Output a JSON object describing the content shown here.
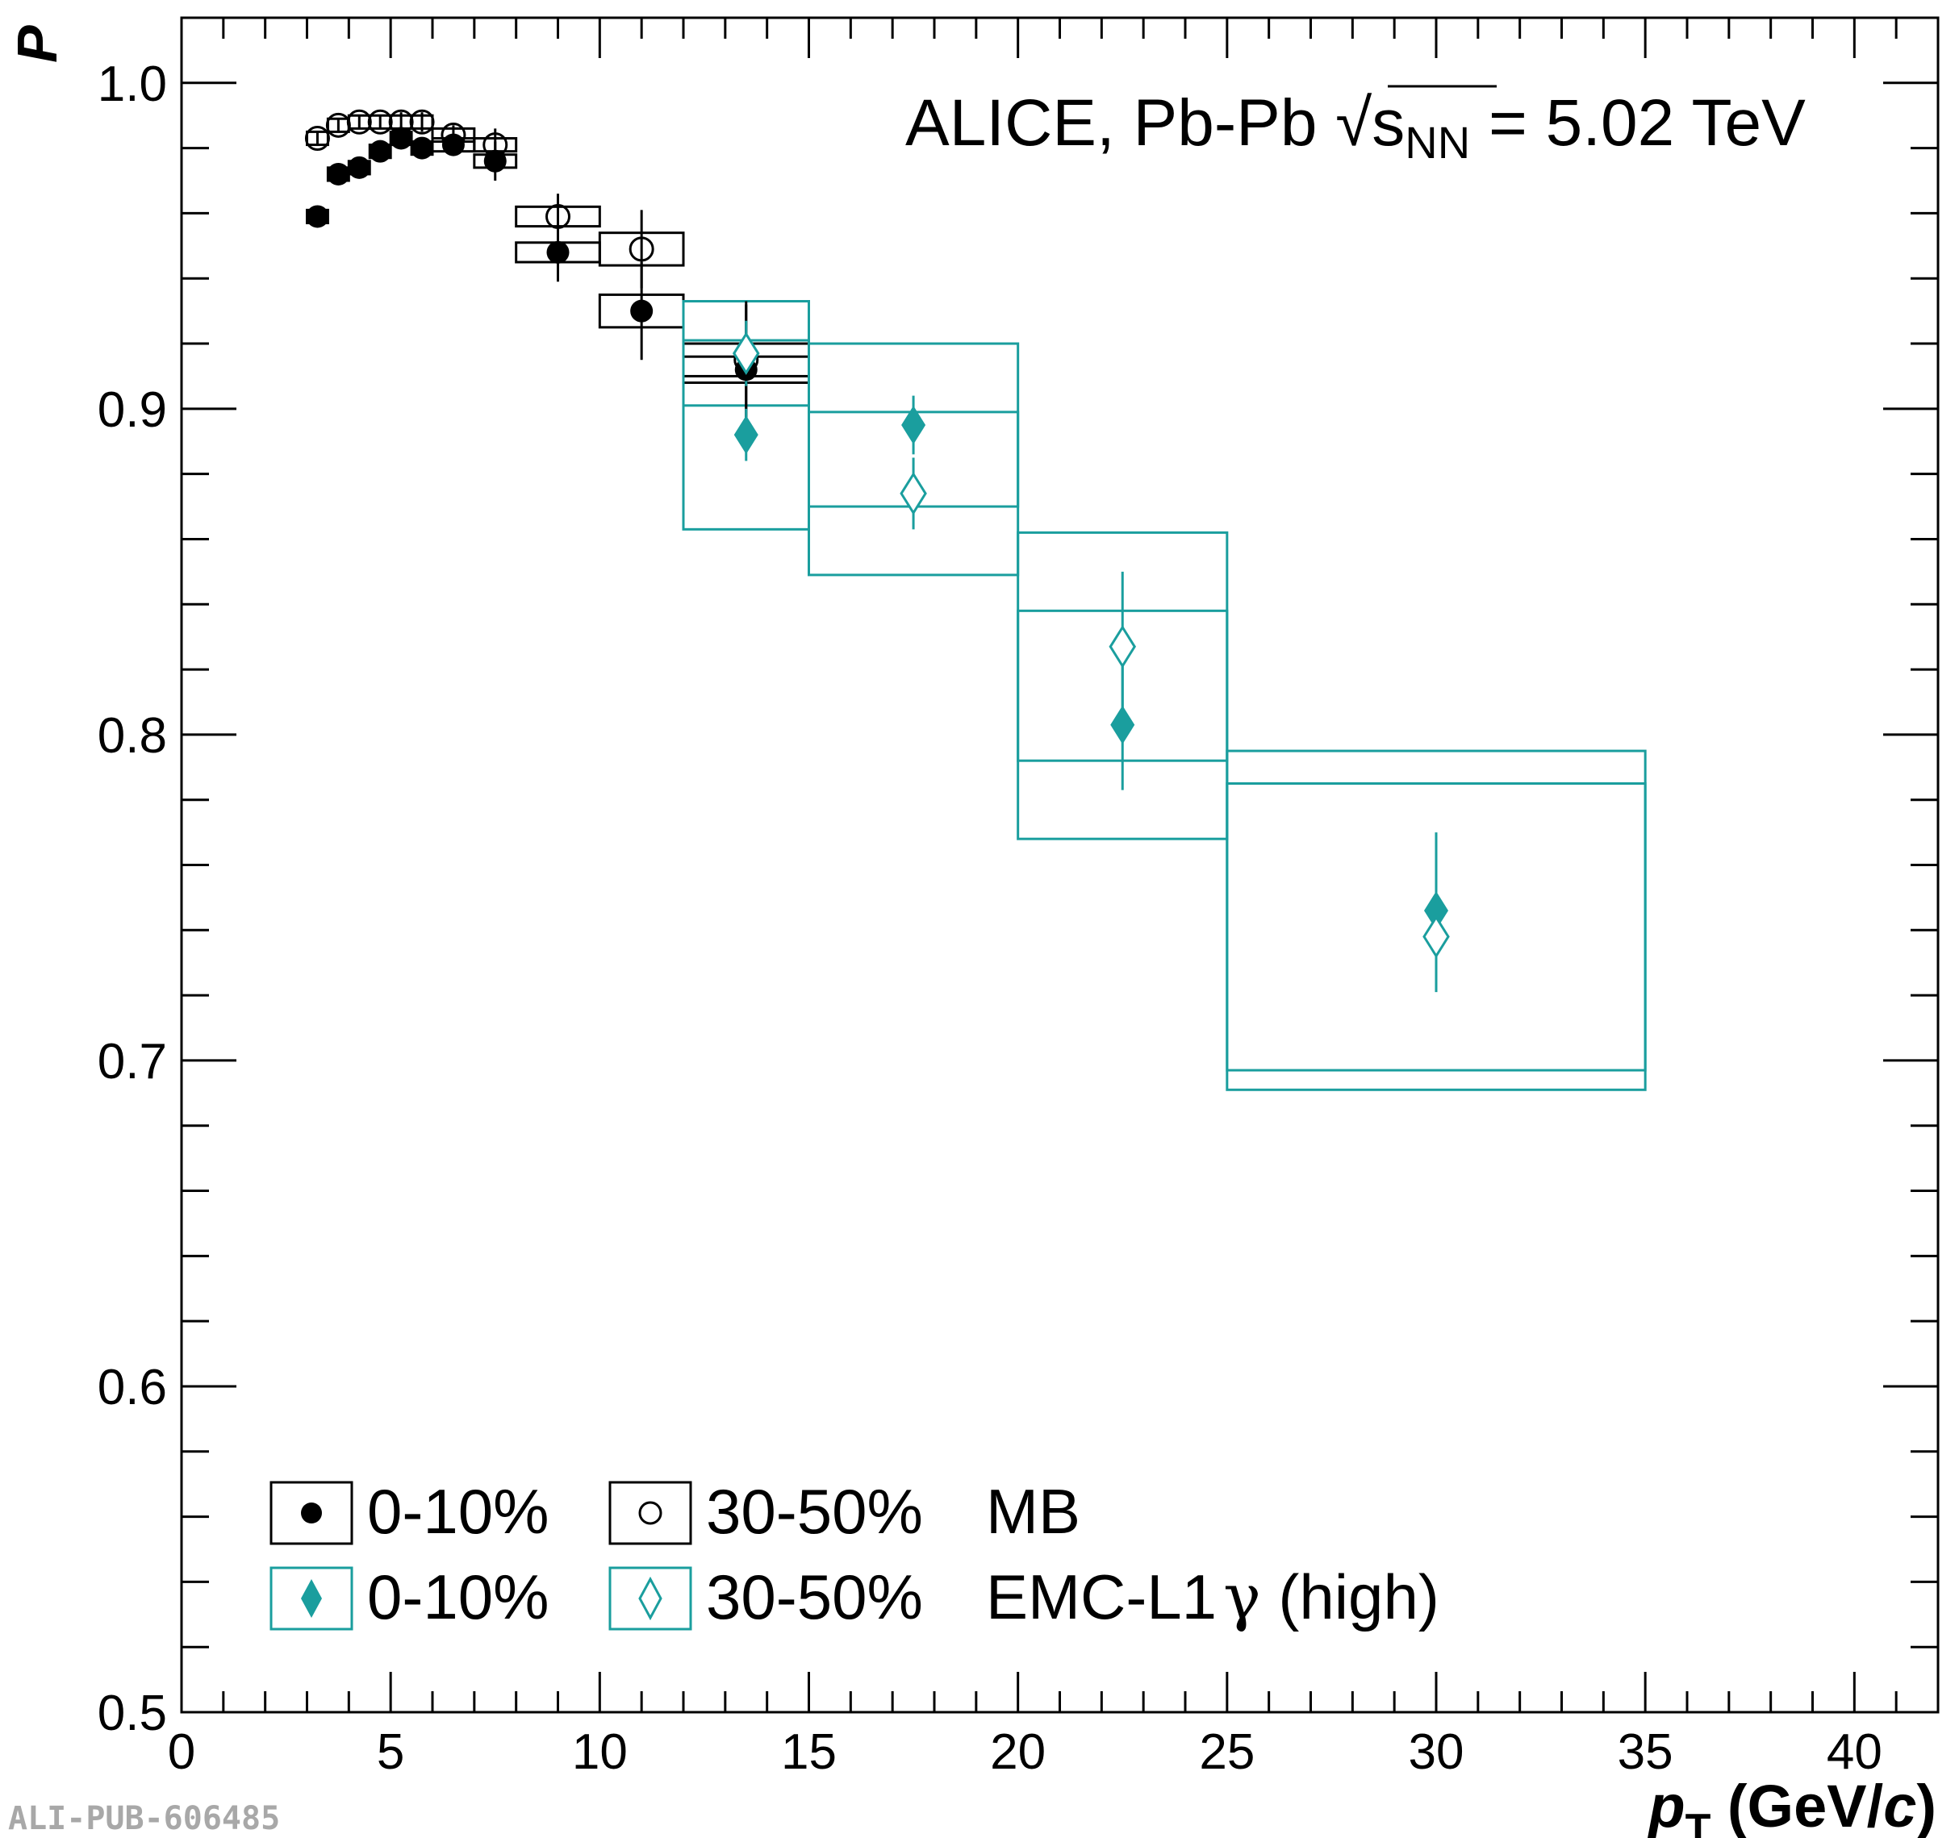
{
  "chart_data": {
    "type": "scatter",
    "annotation": {
      "prefix": "ALICE, Pb-Pb ",
      "sqrt_symbol": "√",
      "s": "s",
      "sub": "NN",
      "suffix": " = 5.02 TeV"
    },
    "ylabel": "P",
    "xlabel": {
      "p": "p",
      "sub": "T",
      "rest_open": " (GeV/",
      "c": "c",
      "rest_close": ")"
    },
    "xlim": [
      0,
      42
    ],
    "ylim": [
      0.5,
      1.02
    ],
    "x_ticks": [
      "0",
      "5",
      "10",
      "15",
      "20",
      "25",
      "30",
      "35",
      "40"
    ],
    "x_tick_values": [
      0,
      5,
      10,
      15,
      20,
      25,
      30,
      35,
      40
    ],
    "y_ticks": [
      "0.5",
      "0.6",
      "0.7",
      "0.8",
      "0.9",
      "1.0"
    ],
    "y_tick_values": [
      0.5,
      0.6,
      0.7,
      0.8,
      0.9,
      1.0
    ],
    "grid": false,
    "legend_position": "bottom-left",
    "legend": {
      "row1": {
        "label_a": "0-10%",
        "label_b": "30-50%",
        "tag": "MB"
      },
      "row2": {
        "label_a": "0-10%",
        "label_b": "30-50%",
        "tag_text": "EMC-L1",
        "tag_gamma": "γ",
        "tag_rest": " (high)"
      }
    },
    "colors": {
      "mb": "#000000",
      "emc": "#1a9e9e"
    },
    "series": [
      {
        "name": "0-10% MB",
        "marker": "filled-circle",
        "color": "#000000",
        "points": [
          {
            "x": 3.25,
            "y": 0.959,
            "ex": 0.25,
            "ey": 0.002,
            "sy": 0.002
          },
          {
            "x": 3.75,
            "y": 0.972,
            "ex": 0.25,
            "ey": 0.002,
            "sy": 0.002
          },
          {
            "x": 4.25,
            "y": 0.974,
            "ex": 0.25,
            "ey": 0.002,
            "sy": 0.002
          },
          {
            "x": 4.75,
            "y": 0.979,
            "ex": 0.25,
            "ey": 0.002,
            "sy": 0.002
          },
          {
            "x": 5.25,
            "y": 0.983,
            "ex": 0.25,
            "ey": 0.002,
            "sy": 0.002
          },
          {
            "x": 5.75,
            "y": 0.98,
            "ex": 0.25,
            "ey": 0.003,
            "sy": 0.002
          },
          {
            "x": 6.5,
            "y": 0.981,
            "ex": 0.5,
            "ey": 0.003,
            "sy": 0.002
          },
          {
            "x": 7.5,
            "y": 0.976,
            "ex": 0.5,
            "ey": 0.006,
            "sy": 0.002
          },
          {
            "x": 9.0,
            "y": 0.948,
            "ex": 1.0,
            "ey": 0.009,
            "sy": 0.003
          },
          {
            "x": 11.0,
            "y": 0.93,
            "ex": 1.0,
            "ey": 0.015,
            "sy": 0.005
          },
          {
            "x": 13.5,
            "y": 0.912,
            "ex": 1.5,
            "ey": 0.02,
            "sy": 0.004
          }
        ]
      },
      {
        "name": "30-50% MB",
        "marker": "open-circle",
        "color": "#000000",
        "points": [
          {
            "x": 3.25,
            "y": 0.983,
            "ex": 0.25,
            "ey": 0.002,
            "sy": 0.002
          },
          {
            "x": 3.75,
            "y": 0.987,
            "ex": 0.25,
            "ey": 0.002,
            "sy": 0.002
          },
          {
            "x": 4.25,
            "y": 0.988,
            "ex": 0.25,
            "ey": 0.002,
            "sy": 0.002
          },
          {
            "x": 4.75,
            "y": 0.988,
            "ex": 0.25,
            "ey": 0.002,
            "sy": 0.002
          },
          {
            "x": 5.25,
            "y": 0.988,
            "ex": 0.25,
            "ey": 0.003,
            "sy": 0.002
          },
          {
            "x": 5.75,
            "y": 0.988,
            "ex": 0.25,
            "ey": 0.003,
            "sy": 0.002
          },
          {
            "x": 6.5,
            "y": 0.984,
            "ex": 0.5,
            "ey": 0.003,
            "sy": 0.002
          },
          {
            "x": 7.5,
            "y": 0.981,
            "ex": 0.5,
            "ey": 0.005,
            "sy": 0.002
          },
          {
            "x": 9.0,
            "y": 0.959,
            "ex": 1.0,
            "ey": 0.007,
            "sy": 0.003
          },
          {
            "x": 11.0,
            "y": 0.949,
            "ex": 1.0,
            "ey": 0.012,
            "sy": 0.005
          },
          {
            "x": 13.5,
            "y": 0.915,
            "ex": 1.5,
            "ey": 0.018,
            "sy": 0.005
          }
        ]
      },
      {
        "name": "0-10% EMC-L1 γ (high)",
        "marker": "filled-diamond",
        "color": "#1a9e9e",
        "points": [
          {
            "x": 13.5,
            "y": 0.892,
            "ex": 1.5,
            "ey": 0.008,
            "sy": 0.029
          },
          {
            "x": 17.5,
            "y": 0.895,
            "ex": 2.5,
            "ey": 0.009,
            "sy": 0.025
          },
          {
            "x": 22.5,
            "y": 0.803,
            "ex": 2.5,
            "ey": 0.02,
            "sy": 0.035
          },
          {
            "x": 30.0,
            "y": 0.746,
            "ex": 5.0,
            "ey": 0.024,
            "sy": 0.049
          }
        ]
      },
      {
        "name": "30-50% EMC-L1 γ (high)",
        "marker": "open-diamond",
        "color": "#1a9e9e",
        "points": [
          {
            "x": 13.5,
            "y": 0.917,
            "ex": 1.5,
            "ey": 0.01,
            "sy": 0.016
          },
          {
            "x": 17.5,
            "y": 0.874,
            "ex": 2.5,
            "ey": 0.011,
            "sy": 0.025
          },
          {
            "x": 22.5,
            "y": 0.827,
            "ex": 2.5,
            "ey": 0.023,
            "sy": 0.035
          },
          {
            "x": 30.0,
            "y": 0.738,
            "ex": 5.0,
            "ey": 0.017,
            "sy": 0.047
          }
        ]
      }
    ]
  },
  "watermark": "ALI-PUB-606485"
}
